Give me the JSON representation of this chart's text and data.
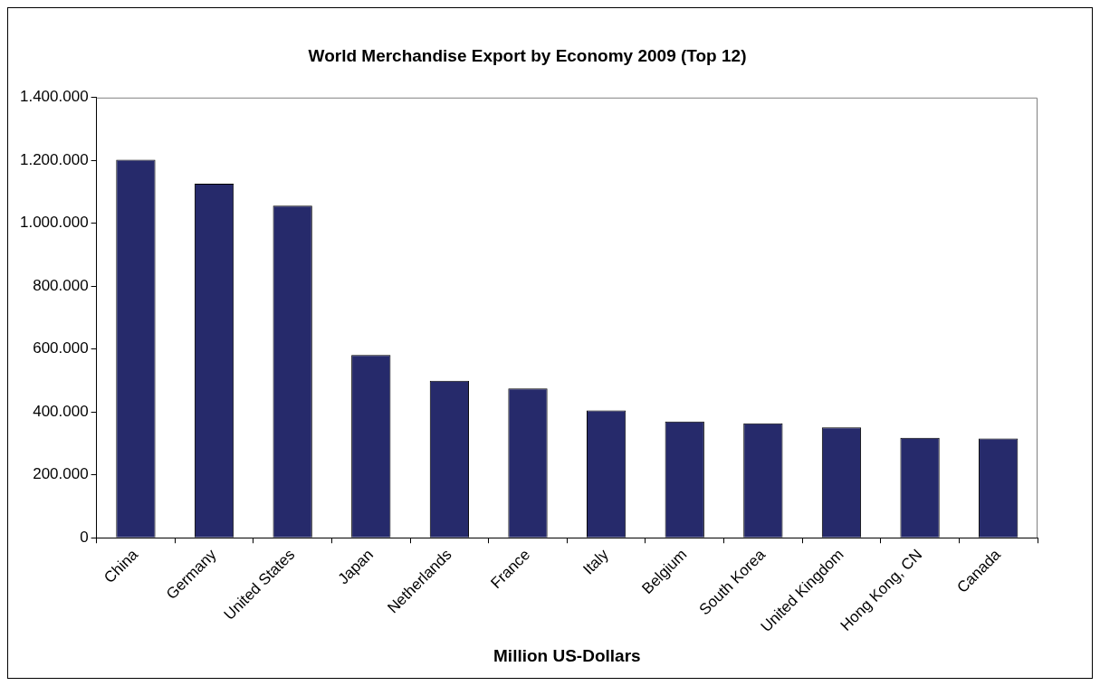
{
  "chart_data": {
    "type": "bar",
    "title": "World Merchandise Export by Economy 2009 (Top 12)",
    "xlabel": "Million US-Dollars",
    "categories": [
      "China",
      "Germany",
      "United States",
      "Japan",
      "Netherlands",
      "France",
      "Italy",
      "Belgium",
      "South Korea",
      "United Kingdom",
      "Hong Kong, CN",
      "Canada"
    ],
    "values": [
      1202000,
      1126000,
      1056000,
      581000,
      499000,
      475000,
      405000,
      370000,
      364000,
      351000,
      318000,
      316000
    ],
    "color": "#262a6b",
    "ylim": [
      0,
      1400000
    ],
    "yticks": [
      {
        "value": 0,
        "label": "0"
      },
      {
        "value": 200000,
        "label": "200.000"
      },
      {
        "value": 400000,
        "label": "400.000"
      },
      {
        "value": 600000,
        "label": "600.000"
      },
      {
        "value": 800000,
        "label": "800.000"
      },
      {
        "value": 1000000,
        "label": "1.000.000"
      },
      {
        "value": 1200000,
        "label": "1.200.000"
      },
      {
        "value": 1400000,
        "label": "1.400.000"
      }
    ],
    "grid": false,
    "legend": false
  }
}
